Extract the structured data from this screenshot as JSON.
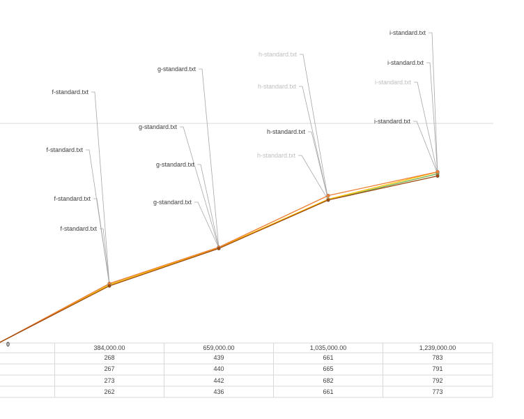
{
  "chart_data": {
    "type": "line",
    "x": [
      0,
      384000,
      659000,
      1035000,
      1239000
    ],
    "x_tick_labels": [
      "0",
      "384,000.00",
      "659,000.00",
      "1,035,000.00",
      "1,239,000.00"
    ],
    "series": [
      {
        "color": "#70ad47",
        "values": [
          0,
          268,
          439,
          661,
          783
        ]
      },
      {
        "color": "#ffc000",
        "values": [
          0,
          267,
          440,
          665,
          791
        ]
      },
      {
        "color": "#ed7d31",
        "values": [
          0,
          273,
          442,
          682,
          792
        ]
      },
      {
        "color": "#9e480e",
        "values": [
          0,
          262,
          436,
          661,
          773
        ]
      }
    ],
    "table_rows": [
      [
        "268",
        "439",
        "661",
        "783"
      ],
      [
        "267",
        "440",
        "665",
        "791"
      ],
      [
        "273",
        "442",
        "682",
        "792"
      ],
      [
        "262",
        "436",
        "661",
        "773"
      ]
    ],
    "point_labels": [
      {
        "text": "f-standard.txt",
        "faded": false
      },
      {
        "text": "f-standard.txt",
        "faded": false
      },
      {
        "text": "f-standard.txt",
        "faded": false
      },
      {
        "text": "f-standard.txt",
        "faded": false
      },
      {
        "text": "g-standard.txt",
        "faded": false
      },
      {
        "text": "g-standard.txt",
        "faded": false
      },
      {
        "text": "g-standard.txt",
        "faded": false
      },
      {
        "text": "g-standard.txt",
        "faded": false
      },
      {
        "text": "h-standard.txt",
        "faded": true
      },
      {
        "text": "h-standard.txt",
        "faded": true
      },
      {
        "text": "h-standard.txt",
        "faded": false
      },
      {
        "text": "h-standard.txt",
        "faded": true
      },
      {
        "text": "i-standard.txt",
        "faded": false
      },
      {
        "text": "i-standard.txt",
        "faded": false
      },
      {
        "text": "i-standard.txt",
        "faded": true
      },
      {
        "text": "i-standard.txt",
        "faded": false
      }
    ],
    "colors": {
      "gridline": "#d9d9d9",
      "table_border": "#d9d9d9",
      "leader_line": "#a6a6a6",
      "label_text": "#404040",
      "label_text_faded": "#bfbfbf"
    }
  }
}
